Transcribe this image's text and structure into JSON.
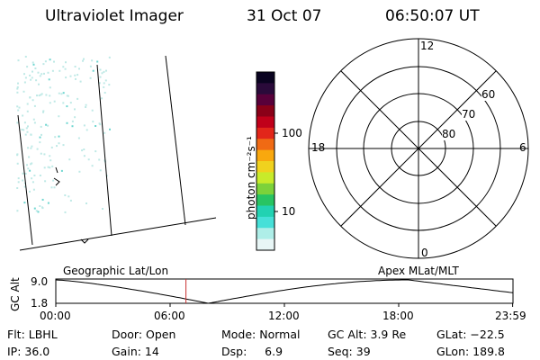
{
  "header": {
    "title": "Ultraviolet Imager",
    "date": "31 Oct 07",
    "time": "06:50:07 UT"
  },
  "colorbar": {
    "label": "photon cm⁻²s⁻¹",
    "ticks": [
      "100",
      "10"
    ],
    "colors": [
      "#0a0320",
      "#2a0a3a",
      "#58003a",
      "#8a0018",
      "#c0001a",
      "#e2261a",
      "#f06a14",
      "#f9a80e",
      "#f0d21e",
      "#c8eb2a",
      "#7cd23a",
      "#28c462",
      "#22d2b2",
      "#46e0d8",
      "#aeeee8",
      "#e8f6f6"
    ]
  },
  "polar_plot": {
    "mlt_labels": [
      "12",
      "18",
      "6",
      "0"
    ],
    "lat_labels": [
      "60",
      "70",
      "80"
    ]
  },
  "timeline": {
    "left_label": "Geographic Lat/Lon",
    "right_label": "Apex MLat/MLT",
    "axis_title": "GC Alt",
    "y_ticks": [
      "9.0",
      "1.8"
    ],
    "x_ticks": [
      "00:00",
      "06:00",
      "12:00",
      "18:00",
      "23:59"
    ],
    "marker_time": "06:50",
    "marker_color": "#c83232"
  },
  "info": {
    "filter": "Flt: LBHL",
    "ip": "IP: 36.0",
    "door": "Door: Open",
    "gain": "Gain: 14",
    "mode": "Mode: Normal",
    "dsp": "Dsp:     6.9",
    "gc_alt": "GC Alt: 3.9 Re",
    "seq": "Seq: 39",
    "glat": "GLat: −22.5",
    "glon": "GLon: 189.8"
  }
}
